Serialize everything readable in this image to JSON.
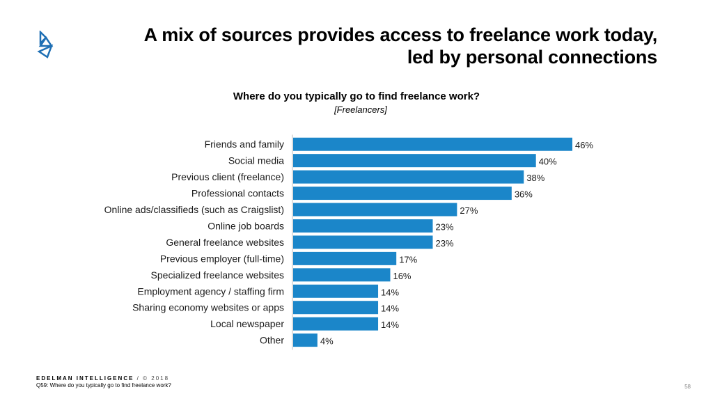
{
  "slide": {
    "title_line1": "A mix of sources provides access to freelance work today,",
    "title_line2": "led by personal connections",
    "page_number": "58"
  },
  "footer": {
    "brand": "EDELMAN INTELLIGENCE",
    "divider": " / ",
    "copyright": "© 2018",
    "question": "Q59: Where do you typically go to find freelance work?"
  },
  "colors": {
    "bar": "#1b86c9",
    "axis": "#bdbdbd",
    "logo": "#1e6fb4"
  },
  "chart_data": {
    "type": "bar",
    "orientation": "horizontal",
    "title": "Where do you typically go to find freelance work?",
    "subtitle": "[Freelancers]",
    "categories": [
      "Friends and family",
      "Social media",
      "Previous client (freelance)",
      "Professional contacts",
      "Online ads/classifieds (such as Craigslist)",
      "Online job boards",
      "General freelance websites",
      "Previous employer (full-time)",
      "Specialized freelance websites",
      "Employment agency / staffing firm",
      "Sharing economy websites or apps",
      "Local newspaper",
      "Other"
    ],
    "values": [
      46,
      40,
      38,
      36,
      27,
      23,
      23,
      17,
      16,
      14,
      14,
      14,
      4
    ],
    "value_suffix": "%",
    "xlim": [
      0,
      46
    ],
    "grid": false
  }
}
